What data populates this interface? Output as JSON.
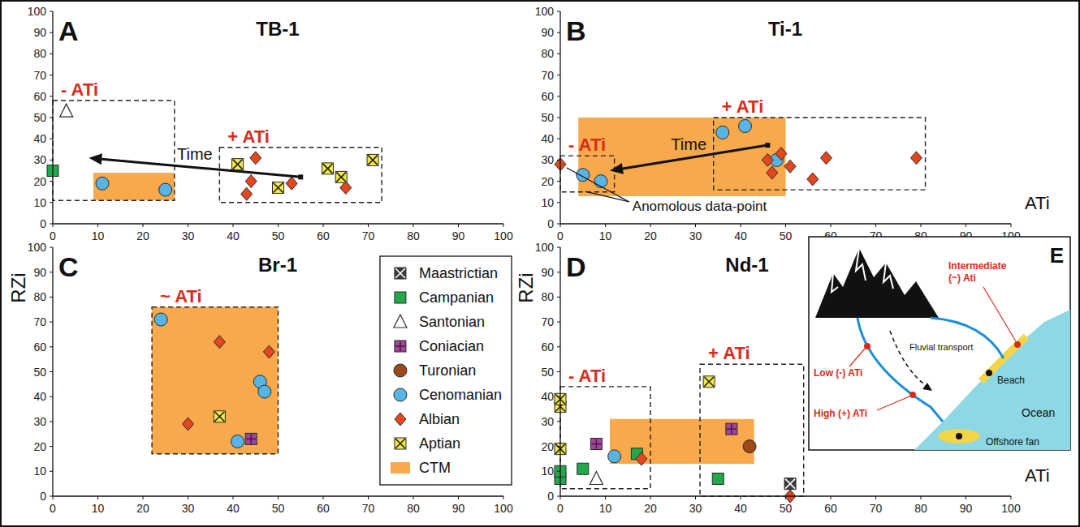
{
  "chart_data": [
    {
      "type": "scatter",
      "label": "A",
      "title": "TB-1",
      "xlim": [
        0,
        100
      ],
      "ylim": [
        0,
        100
      ],
      "xticks": [
        0,
        10,
        20,
        30,
        40,
        50,
        60,
        70,
        80,
        90,
        100
      ],
      "yticks": [
        0,
        10,
        20,
        30,
        40,
        50,
        60,
        70,
        80,
        90,
        100
      ],
      "series": [
        {
          "name": "Campanian",
          "x": [
            0
          ],
          "values": [
            25
          ]
        },
        {
          "name": "Santonian",
          "x": [
            3
          ],
          "values": [
            53
          ]
        },
        {
          "name": "Cenomanian",
          "x": [
            11,
            25
          ],
          "values": [
            19,
            16
          ]
        },
        {
          "name": "Albian",
          "x": [
            43,
            44,
            45,
            53,
            65
          ],
          "values": [
            14,
            20,
            31,
            19,
            17
          ]
        },
        {
          "name": "Aptian",
          "x": [
            41,
            50,
            61,
            64,
            71
          ],
          "values": [
            28,
            17,
            26,
            22,
            30
          ]
        }
      ],
      "ranges": [
        {
          "name": "CTM",
          "x": [
            9,
            27
          ],
          "y": [
            11,
            24
          ]
        }
      ],
      "boxes": [
        {
          "label": "- ATi",
          "x": [
            0,
            27
          ],
          "y": [
            11,
            58
          ]
        },
        {
          "label": "+ ATi",
          "x": [
            37,
            73
          ],
          "y": [
            10,
            36
          ]
        }
      ],
      "arrows": [
        {
          "label": "Time",
          "from": [
            55,
            22
          ],
          "to": [
            8,
            31
          ]
        }
      ]
    },
    {
      "type": "scatter",
      "label": "B",
      "title": "Ti-1",
      "x_label": "ATi",
      "xlim": [
        0,
        100
      ],
      "ylim": [
        0,
        100
      ],
      "xticks": [
        0,
        10,
        20,
        30,
        40,
        50,
        60,
        70,
        80,
        90,
        100
      ],
      "yticks": [
        0,
        10,
        20,
        30,
        40,
        50,
        60,
        70,
        80,
        90,
        100
      ],
      "series": [
        {
          "name": "Cenomanian",
          "x": [
            5,
            9,
            36,
            41,
            48
          ],
          "values": [
            23,
            20,
            43,
            46,
            30
          ]
        },
        {
          "name": "Albian",
          "x": [
            0,
            46,
            47,
            49,
            51,
            56,
            59,
            79
          ],
          "values": [
            28,
            30,
            24,
            33,
            27,
            21,
            31,
            31
          ]
        }
      ],
      "ranges": [
        {
          "name": "CTM",
          "x": [
            4,
            50
          ],
          "y": [
            13,
            50
          ]
        }
      ],
      "boxes": [
        {
          "label": "- ATi",
          "x": [
            0,
            12
          ],
          "y": [
            15,
            32
          ]
        },
        {
          "label": "+ ATi",
          "x": [
            34,
            81
          ],
          "y": [
            16,
            50
          ]
        }
      ],
      "arrows": [
        {
          "label": "Time",
          "from": [
            46,
            37
          ],
          "to": [
            11,
            25
          ]
        }
      ],
      "annotations": [
        {
          "text": "Anomolous data-point",
          "x": 16,
          "y": 8,
          "targets": [
            [
              0,
              28
            ],
            [
              4,
              16
            ]
          ]
        }
      ]
    },
    {
      "type": "scatter",
      "label": "C",
      "title": "Br-1",
      "y_label": "RZi",
      "legend": "right",
      "xlim": [
        0,
        100
      ],
      "ylim": [
        0,
        100
      ],
      "xticks": [
        0,
        10,
        20,
        30,
        40,
        50,
        60,
        70,
        80,
        90,
        100
      ],
      "yticks": [
        0,
        10,
        20,
        30,
        40,
        50,
        60,
        70,
        80,
        90,
        100
      ],
      "series": [
        {
          "name": "Coniacian",
          "x": [
            44
          ],
          "values": [
            23
          ]
        },
        {
          "name": "Cenomanian",
          "x": [
            24,
            41,
            46,
            47
          ],
          "values": [
            71,
            22,
            46,
            42
          ]
        },
        {
          "name": "Albian",
          "x": [
            30,
            37,
            48
          ],
          "values": [
            29,
            62,
            58
          ]
        },
        {
          "name": "Aptian",
          "x": [
            37
          ],
          "values": [
            32
          ]
        }
      ],
      "ranges": [
        {
          "name": "CTM",
          "x": [
            22,
            50
          ],
          "y": [
            17,
            76
          ]
        }
      ],
      "boxes": [
        {
          "label": "~ ATi",
          "x": [
            22,
            50
          ],
          "y": [
            17,
            76
          ]
        }
      ]
    },
    {
      "type": "scatter",
      "label": "D",
      "title": "Nd-1",
      "x_label": "ATi",
      "y_label": "RZi",
      "xlim": [
        0,
        100
      ],
      "ylim": [
        0,
        100
      ],
      "xticks": [
        0,
        10,
        20,
        30,
        40,
        50,
        60,
        70,
        80,
        90,
        100
      ],
      "yticks": [
        0,
        10,
        20,
        30,
        40,
        50,
        60,
        70,
        80,
        90,
        100
      ],
      "series": [
        {
          "name": "Maastrictian",
          "x": [
            51
          ],
          "values": [
            5
          ]
        },
        {
          "name": "Campanian",
          "x": [
            0,
            0,
            5,
            17,
            35
          ],
          "values": [
            7,
            10,
            11,
            17,
            7
          ]
        },
        {
          "name": "Santonian",
          "x": [
            8
          ],
          "values": [
            7
          ]
        },
        {
          "name": "Coniacian",
          "x": [
            8,
            38
          ],
          "values": [
            21,
            27
          ]
        },
        {
          "name": "Turonian",
          "x": [
            42
          ],
          "values": [
            20
          ]
        },
        {
          "name": "Cenomanian",
          "x": [
            12
          ],
          "values": [
            16
          ]
        },
        {
          "name": "Albian",
          "x": [
            18,
            51
          ],
          "values": [
            15,
            0
          ]
        },
        {
          "name": "Aptian",
          "x": [
            0,
            0,
            0,
            33
          ],
          "values": [
            36,
            39,
            19,
            46
          ]
        }
      ],
      "ranges": [
        {
          "name": "CTM",
          "x": [
            11,
            43
          ],
          "y": [
            13,
            31
          ]
        }
      ],
      "boxes": [
        {
          "label": "- ATi",
          "x": [
            0,
            20
          ],
          "y": [
            3,
            44
          ]
        },
        {
          "label": "+ ATi",
          "x": [
            31,
            54
          ],
          "y": [
            0,
            53
          ]
        }
      ]
    }
  ],
  "key": {
    "entries": [
      {
        "name": "Maastrictian",
        "color": "#3a3a3a",
        "marker": "square-x"
      },
      {
        "name": "Campanian",
        "color": "#22a84a",
        "marker": "square"
      },
      {
        "name": "Santonian",
        "color": "#ffffff",
        "marker": "triangle"
      },
      {
        "name": "Coniacian",
        "color": "#a2449c",
        "marker": "square-plus"
      },
      {
        "name": "Turonian",
        "color": "#9c4a1a",
        "marker": "circle"
      },
      {
        "name": "Cenomanian",
        "color": "#58b4e4",
        "marker": "circle"
      },
      {
        "name": "Albian",
        "color": "#e4461e",
        "marker": "diamond"
      },
      {
        "name": "Aptian",
        "color": "#f3e94a",
        "marker": "x"
      },
      {
        "name": "CTM",
        "color": "#f8a94b",
        "marker": "rect"
      }
    ]
  },
  "diagram": {
    "label": "E",
    "texts": {
      "low": "Low (-) ATi",
      "intermediate": "Intermediate (~) Ati",
      "high": "High (+) ATi",
      "fluvial": "Fluvial transport",
      "beach": "Beach",
      "ocean": "Ocean",
      "fan": "Offshore fan"
    }
  }
}
